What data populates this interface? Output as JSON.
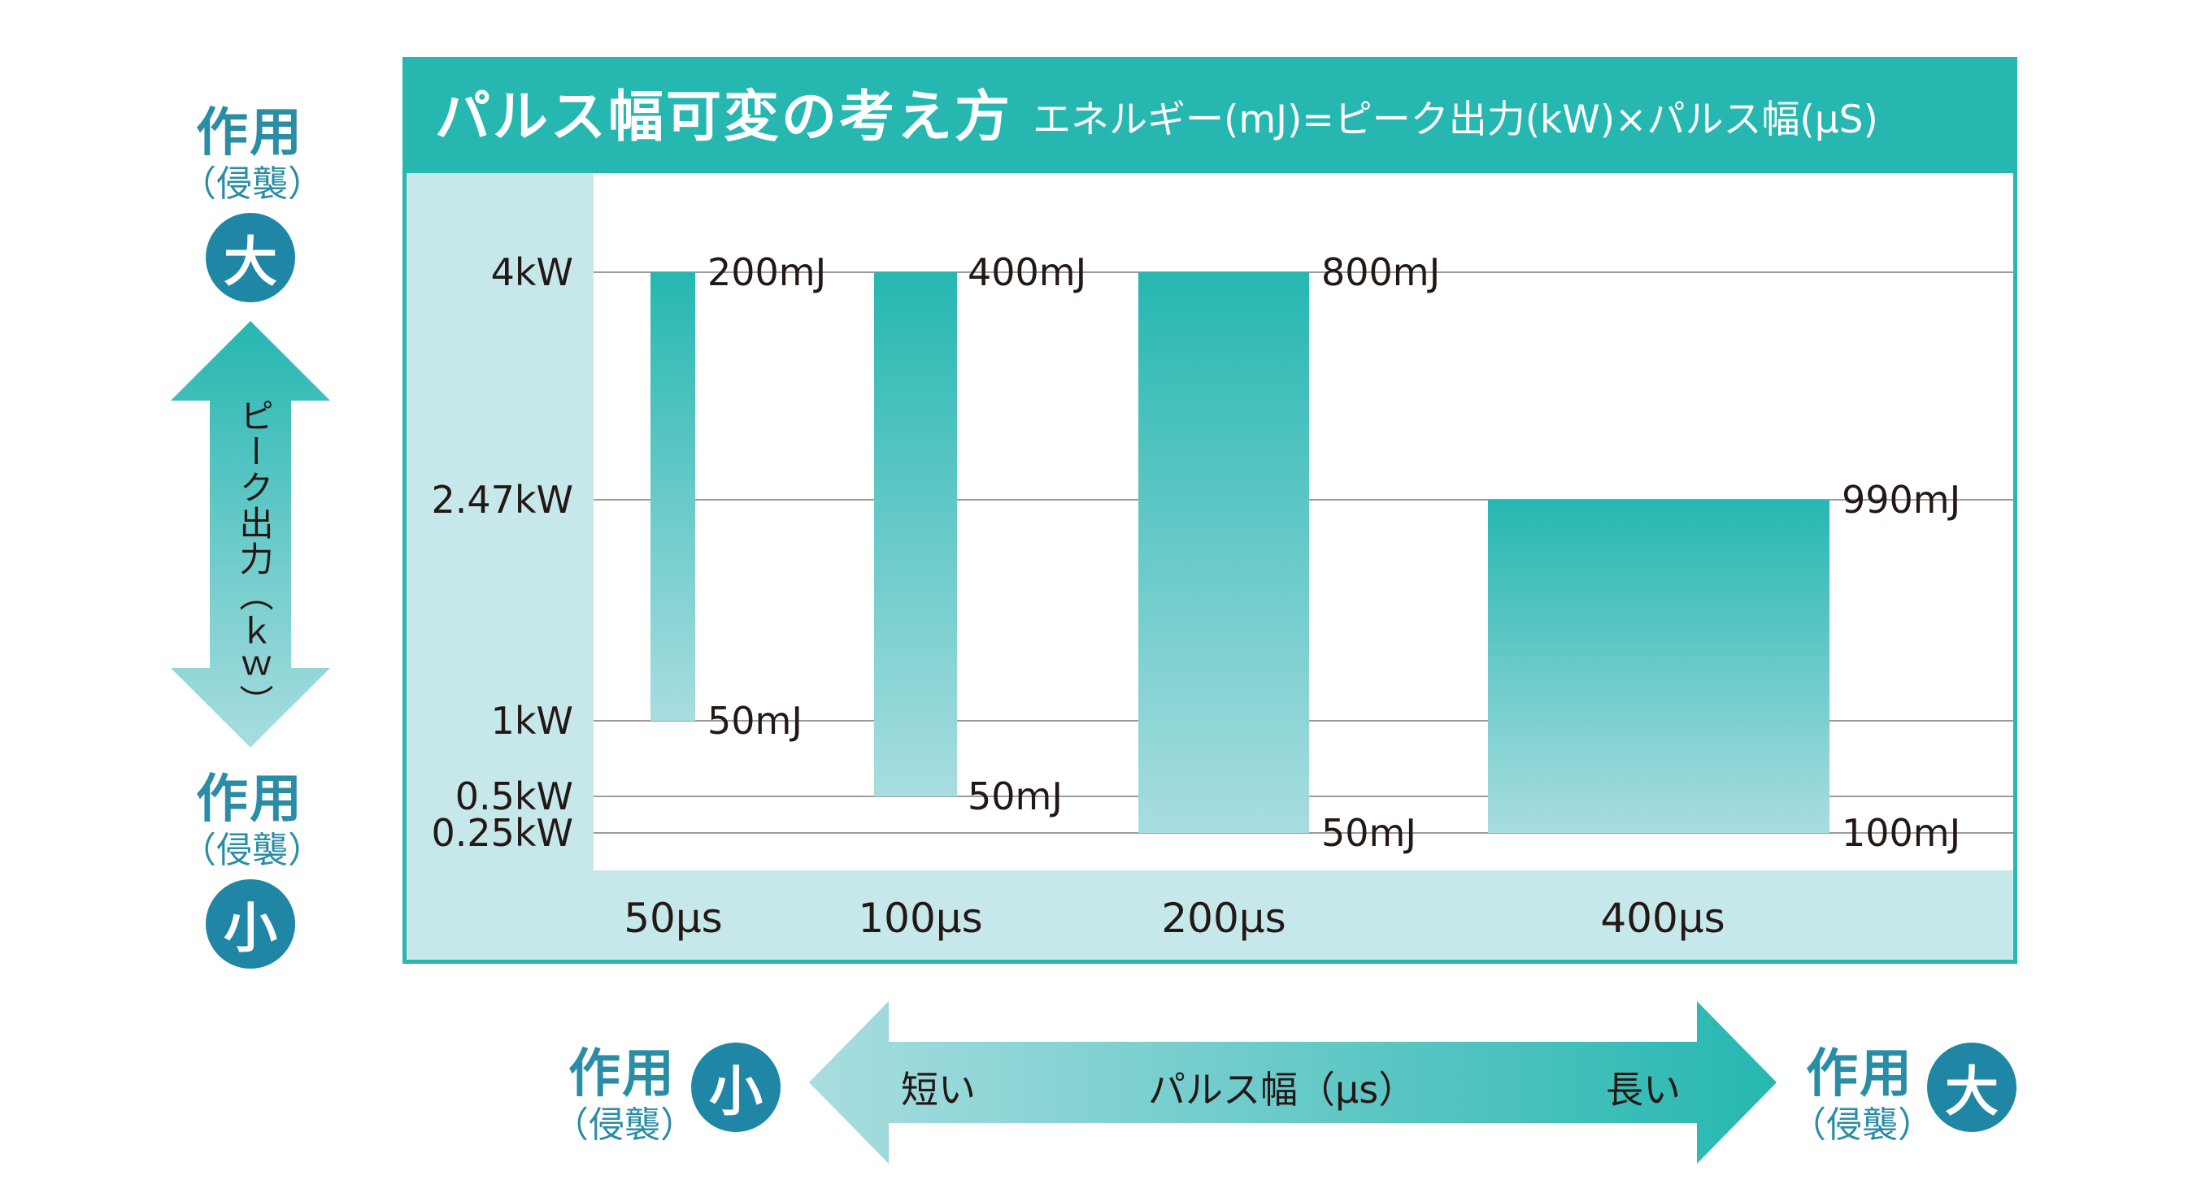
{
  "left_legend": {
    "top_title": "作用",
    "top_sub": "（侵襲）",
    "top_circle": "大",
    "axis_label": "ピーク出力（ｋｗ）",
    "bottom_title": "作用",
    "bottom_sub": "（侵襲）",
    "bottom_circle": "小"
  },
  "header": {
    "title": "パルス幅可変の考え方",
    "formula": "エネルギー(mJ)=ピーク出力(kW)×パルス幅(μS)"
  },
  "bottom_legend": {
    "left_title": "作用",
    "left_sub": "（侵襲）",
    "left_circle": "小",
    "short_label": "短い",
    "center_label": "パルス幅（μs）",
    "long_label": "長い",
    "right_title": "作用",
    "right_sub": "（侵襲）",
    "right_circle": "大"
  },
  "colors": {
    "teal": "#26b7b1",
    "light_teal": "#a9dde0",
    "panel": "#c7e8ea",
    "circle": "#1f87a5",
    "legend_text": "#2a8da6"
  },
  "chart_data": {
    "type": "bar",
    "y_ticks": [
      {
        "label": "4kW",
        "value": 4
      },
      {
        "label": "2.47kW",
        "value": 2.47
      },
      {
        "label": "1kW",
        "value": 1
      },
      {
        "label": "0.5kW",
        "value": 0.5
      },
      {
        "label": "0.25kW",
        "value": 0.25
      }
    ],
    "bars": [
      {
        "category": "50μs",
        "width_us": 50,
        "max_kw": 4,
        "min_kw": 1,
        "max_energy": "200mJ",
        "min_energy": "50mJ"
      },
      {
        "category": "100μs",
        "width_us": 100,
        "max_kw": 4,
        "min_kw": 0.5,
        "max_energy": "400mJ",
        "min_energy": "50mJ"
      },
      {
        "category": "200μs",
        "width_us": 200,
        "max_kw": 4,
        "min_kw": 0.25,
        "max_energy": "800mJ",
        "min_energy": "50mJ"
      },
      {
        "category": "400μs",
        "width_us": 400,
        "max_kw": 2.47,
        "min_kw": 0.25,
        "max_energy": "990mJ",
        "min_energy": "100mJ"
      }
    ]
  }
}
